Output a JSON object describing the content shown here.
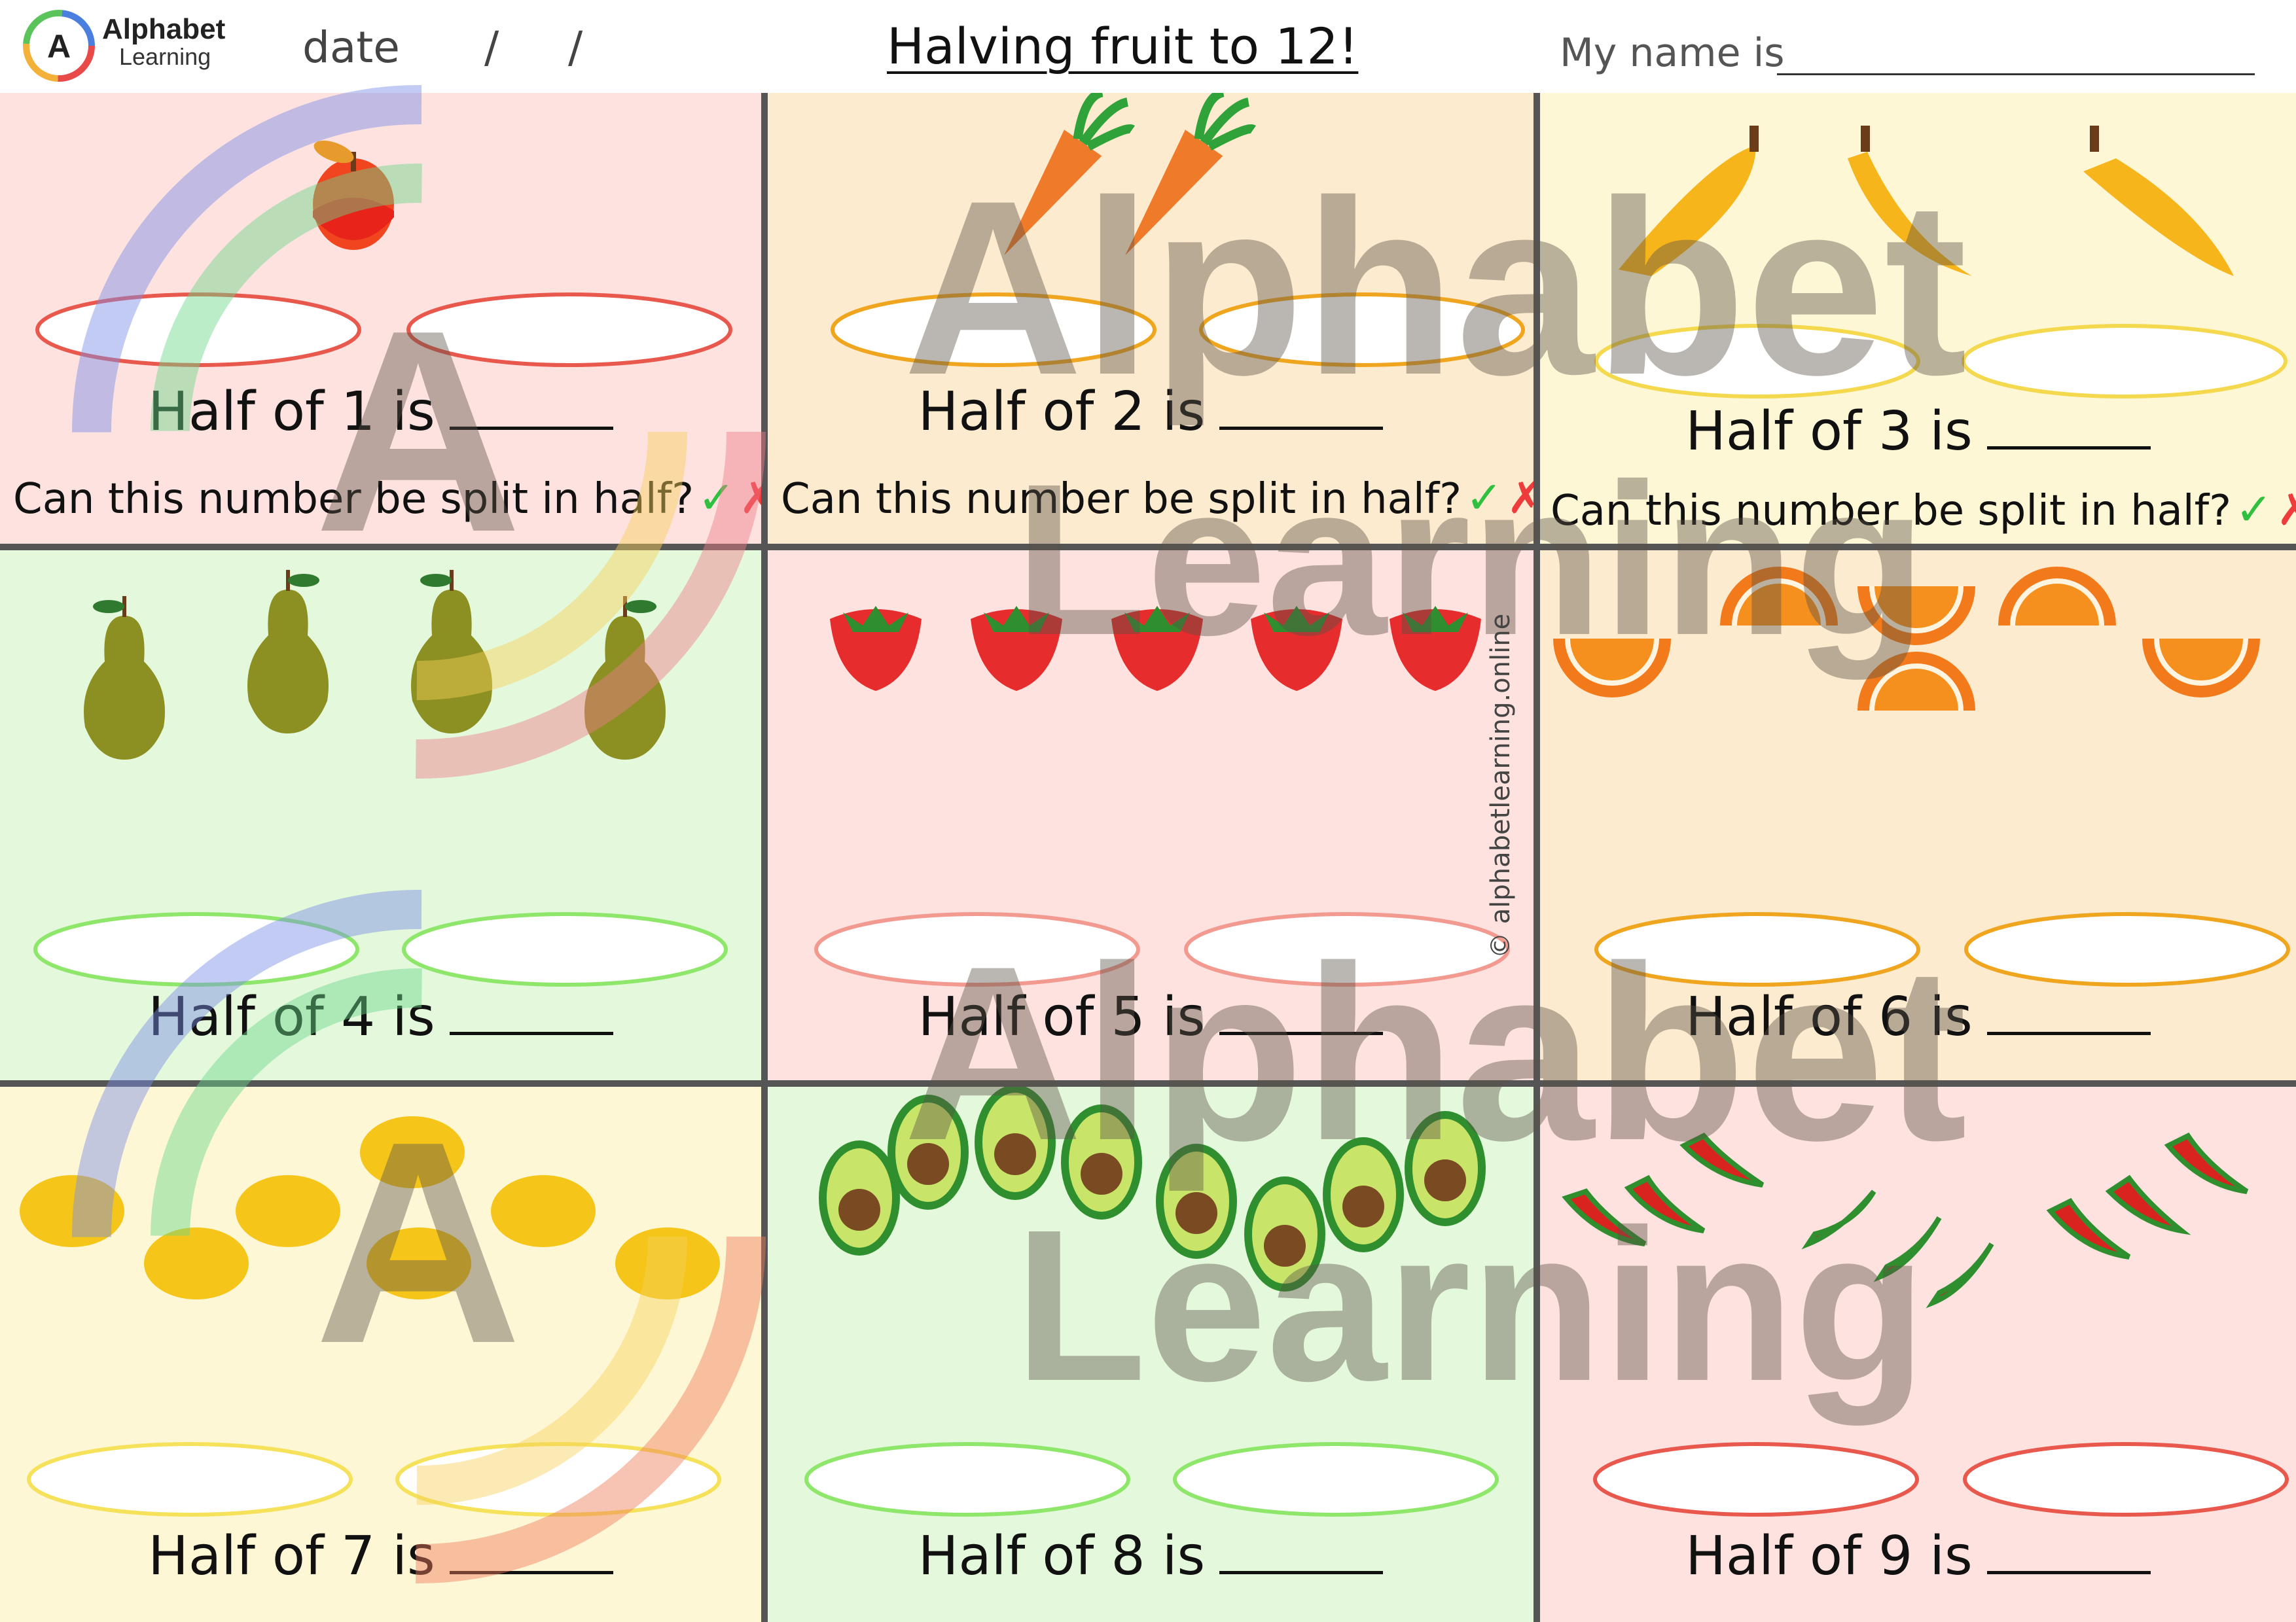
{
  "header": {
    "brand_line1": "Alphabet",
    "brand_line2": "Learning",
    "logo_letter": "A",
    "date_label": "date",
    "date_sep": "/",
    "title": "Halving fruit to 12!",
    "name_label": "My name is"
  },
  "prompt_text": "Can this number be split in half?",
  "tick_symbol": "✓",
  "cross_symbol": "✗",
  "cells": [
    {
      "question": "Half of 1 is",
      "number": 1,
      "fruit": "apple-icon",
      "background": "#fde2df",
      "oval_color": "#e8584d"
    },
    {
      "question": "Half of 2 is",
      "number": 2,
      "fruit": "carrot-icon",
      "background": "#fdebcf",
      "oval_color": "#f0a51f"
    },
    {
      "question": "Half of 3 is",
      "number": 3,
      "fruit": "banana-icon",
      "background": "#fef7d6",
      "oval_color": "#f4d84d"
    },
    {
      "question": "Half of 4 is",
      "number": 4,
      "fruit": "pear-icon",
      "background": "#e4f8dc",
      "oval_color": "#8ee66a"
    },
    {
      "question": "Half of 5 is",
      "number": 5,
      "fruit": "strawberry-icon",
      "background": "#fde2df",
      "oval_color": "#f29a90"
    },
    {
      "question": "Half of 6 is",
      "number": 6,
      "fruit": "orange-slice-icon",
      "background": "#fdebcf",
      "oval_color": "#f0a51f"
    },
    {
      "question": "Half of 7 is",
      "number": 7,
      "fruit": "lemon-icon",
      "background": "#fef7d6",
      "oval_color": "#f5e25a"
    },
    {
      "question": "Half of 8 is",
      "number": 8,
      "fruit": "avocado-icon",
      "background": "#e4f8dc",
      "oval_color": "#8ee66a"
    },
    {
      "question": "Half of 9 is",
      "number": 9,
      "fruit": "chili-icon",
      "background": "#fde2df",
      "oval_color": "#e8584d"
    }
  ],
  "watermark": {
    "word1": "Alphabet",
    "word2": "Learning"
  },
  "credit": "© alphabetlearning.online"
}
